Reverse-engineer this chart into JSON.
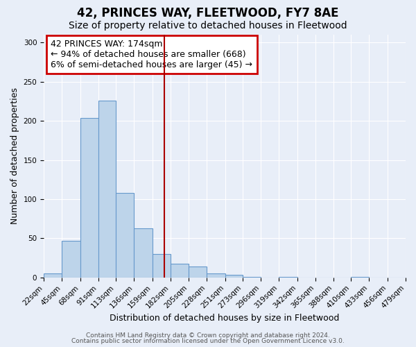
{
  "title": "42, PRINCES WAY, FLEETWOOD, FY7 8AE",
  "subtitle": "Size of property relative to detached houses in Fleetwood",
  "xlabel": "Distribution of detached houses by size in Fleetwood",
  "ylabel": "Number of detached properties",
  "bar_values": [
    5,
    47,
    204,
    226,
    108,
    63,
    30,
    18,
    14,
    5,
    3,
    1,
    0,
    1,
    0,
    0,
    0,
    1,
    0,
    0
  ],
  "bin_edges": [
    22,
    45,
    68,
    91,
    113,
    136,
    159,
    182,
    205,
    228,
    251,
    273,
    296,
    319,
    342,
    365,
    388,
    410,
    433,
    456,
    479
  ],
  "tick_labels": [
    "22sqm",
    "45sqm",
    "68sqm",
    "91sqm",
    "113sqm",
    "136sqm",
    "159sqm",
    "182sqm",
    "205sqm",
    "228sqm",
    "251sqm",
    "273sqm",
    "296sqm",
    "319sqm",
    "342sqm",
    "365sqm",
    "388sqm",
    "410sqm",
    "433sqm",
    "456sqm",
    "479sqm"
  ],
  "bar_color": "#bdd4ea",
  "bar_edge_color": "#6699cc",
  "vline_x": 174,
  "vline_color": "#aa0000",
  "ylim": [
    0,
    310
  ],
  "yticks": [
    0,
    50,
    100,
    150,
    200,
    250,
    300
  ],
  "annotation_text_line1": "42 PRINCES WAY: 174sqm",
  "annotation_text_line2": "← 94% of detached houses are smaller (668)",
  "annotation_text_line3": "6% of semi-detached houses are larger (45) →",
  "footer_line1": "Contains HM Land Registry data © Crown copyright and database right 2024.",
  "footer_line2": "Contains public sector information licensed under the Open Government Licence v3.0.",
  "background_color": "#e8eef8",
  "grid_color": "#ffffff",
  "title_fontsize": 12,
  "subtitle_fontsize": 10,
  "xlabel_fontsize": 9,
  "ylabel_fontsize": 9,
  "tick_fontsize": 7.5,
  "footer_fontsize": 6.5,
  "annotation_fontsize": 9
}
